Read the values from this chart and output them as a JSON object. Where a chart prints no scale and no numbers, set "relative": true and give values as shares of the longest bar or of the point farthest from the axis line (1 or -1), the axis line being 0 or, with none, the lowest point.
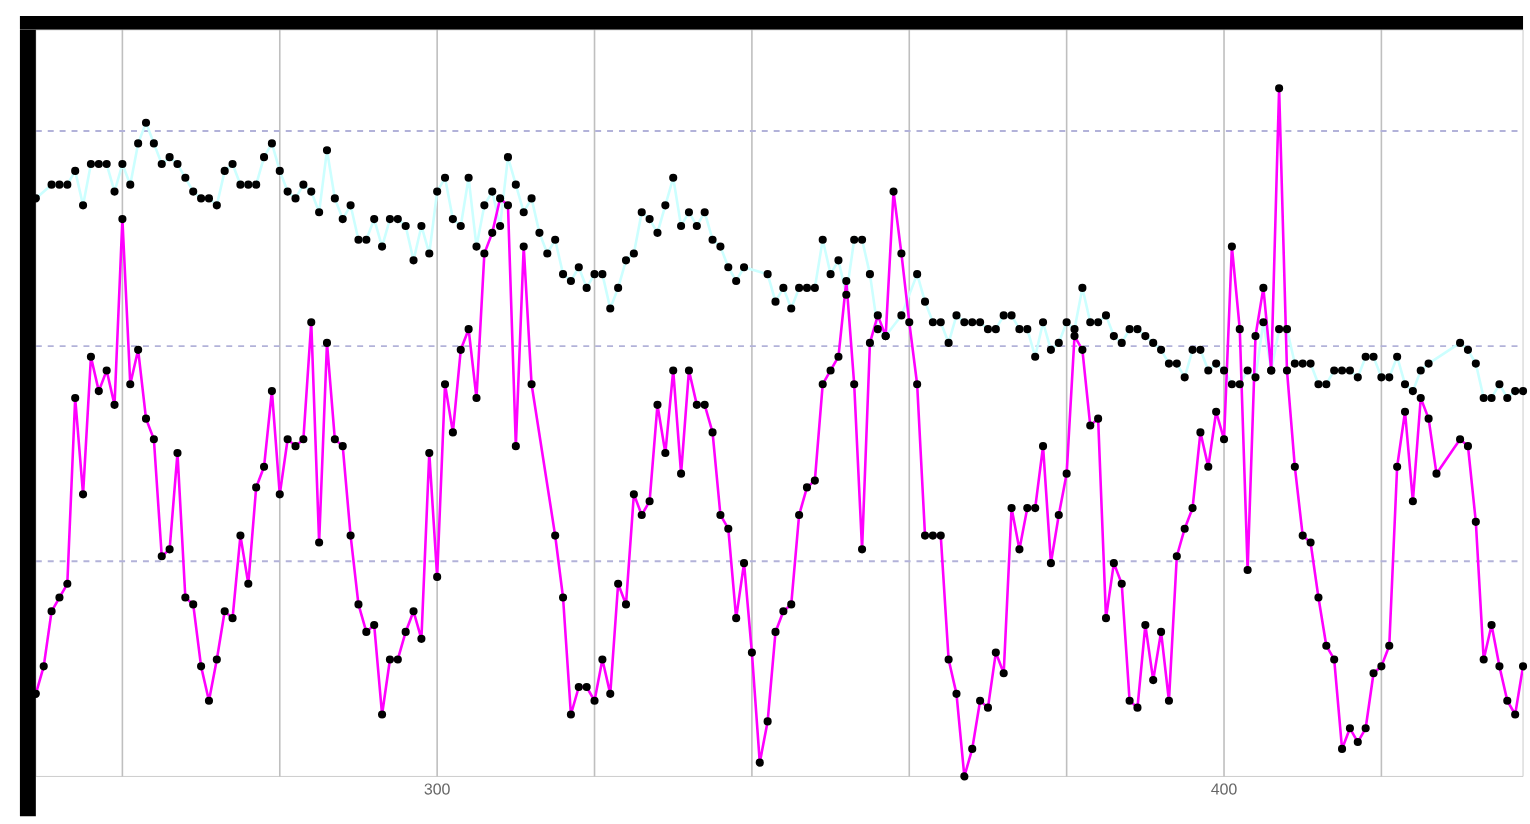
{
  "chart_data": {
    "type": "line",
    "relative": true,
    "grid": true,
    "marker": "circle",
    "xlim": [
      249,
      438
    ],
    "xticks": [
      {
        "value": 260,
        "label": null
      },
      {
        "value": 280,
        "label": null
      },
      300,
      {
        "value": 320,
        "label": null
      },
      {
        "value": 340,
        "label": null
      },
      {
        "value": 360,
        "label": null
      },
      {
        "value": 380,
        "label": null
      },
      400,
      {
        "value": 420,
        "label": null
      }
    ],
    "series": [
      {
        "color": "#ccffff",
        "x": [
          249,
          251,
          252,
          253,
          254,
          255,
          256,
          257,
          258,
          259,
          260,
          261,
          262,
          263,
          264,
          265,
          266,
          267,
          268,
          269,
          270,
          271,
          272,
          273,
          274,
          275,
          276,
          277,
          278,
          279,
          280,
          281,
          282,
          283,
          284,
          285,
          286,
          287,
          288,
          289,
          290,
          291,
          292,
          293,
          294,
          295,
          296,
          297,
          298,
          299,
          300,
          301,
          302,
          303,
          304,
          305,
          306,
          307,
          308,
          309,
          310,
          311,
          312,
          313,
          314,
          315,
          316,
          317,
          318,
          319,
          320,
          321,
          322,
          323,
          324,
          325,
          326,
          327,
          328,
          329,
          330,
          331,
          332,
          333,
          334,
          335,
          336,
          337,
          338,
          339,
          342,
          343,
          344,
          345,
          346,
          347,
          348,
          349,
          350,
          351,
          352,
          353,
          354,
          355,
          356,
          357,
          359,
          361,
          362,
          363,
          364,
          365,
          366,
          367,
          368,
          369,
          370,
          371,
          372,
          373,
          374,
          375,
          376,
          377,
          378,
          379,
          380,
          381,
          382,
          383,
          384,
          385,
          386,
          387,
          388,
          389,
          390,
          391,
          392,
          393,
          394,
          395,
          396,
          397,
          398,
          399,
          400,
          401,
          402,
          403,
          404,
          405,
          406,
          407,
          408,
          409,
          410,
          411,
          412,
          413,
          414,
          415,
          416,
          417,
          418,
          419,
          420,
          421,
          422,
          423,
          424,
          425,
          426,
          430,
          431,
          432,
          433,
          434,
          435,
          436,
          437,
          438
        ],
        "values": [
          0.84,
          0.86,
          0.86,
          0.86,
          0.88,
          0.83,
          0.89,
          0.89,
          0.89,
          0.85,
          0.89,
          0.86,
          0.92,
          0.95,
          0.92,
          0.89,
          0.9,
          0.89,
          0.87,
          0.85,
          0.84,
          0.84,
          0.83,
          0.88,
          0.89,
          0.86,
          0.86,
          0.86,
          0.9,
          0.92,
          0.88,
          0.85,
          0.84,
          0.86,
          0.85,
          0.82,
          0.91,
          0.84,
          0.81,
          0.83,
          0.78,
          0.78,
          0.81,
          0.77,
          0.81,
          0.81,
          0.8,
          0.75,
          0.8,
          0.76,
          0.85,
          0.87,
          0.81,
          0.8,
          0.87,
          0.77,
          0.83,
          0.85,
          0.8,
          0.9,
          0.86,
          0.82,
          0.84,
          0.79,
          0.76,
          0.78,
          0.73,
          0.72,
          0.74,
          0.71,
          0.73,
          0.73,
          0.68,
          0.71,
          0.75,
          0.76,
          0.82,
          0.81,
          0.79,
          0.83,
          0.87,
          0.8,
          0.82,
          0.8,
          0.82,
          0.78,
          0.77,
          0.74,
          0.72,
          0.74,
          0.73,
          0.69,
          0.71,
          0.68,
          0.71,
          0.71,
          0.71,
          0.78,
          0.73,
          0.75,
          0.7,
          0.78,
          0.78,
          0.73,
          0.65,
          0.64,
          0.67,
          0.73,
          0.69,
          0.66,
          0.66,
          0.63,
          0.67,
          0.66,
          0.66,
          0.66,
          0.65,
          0.65,
          0.67,
          0.67,
          0.65,
          0.65,
          0.61,
          0.66,
          0.62,
          0.63,
          0.66,
          0.65,
          0.71,
          0.66,
          0.66,
          0.67,
          0.64,
          0.63,
          0.65,
          0.65,
          0.64,
          0.63,
          0.62,
          0.6,
          0.6,
          0.58,
          0.62,
          0.62,
          0.59,
          0.6,
          0.59,
          0.57,
          0.57,
          0.59,
          0.58,
          0.66,
          0.59,
          0.65,
          0.65,
          0.6,
          0.6,
          0.6,
          0.57,
          0.57,
          0.59,
          0.59,
          0.59,
          0.58,
          0.61,
          0.61,
          0.58,
          0.58,
          0.61,
          0.57,
          0.56,
          0.59,
          0.6,
          0.63,
          0.62,
          0.6,
          0.55,
          0.55,
          0.57,
          0.55,
          0.56,
          0.56
        ]
      },
      {
        "color": "#ff00ff",
        "x": [
          249,
          250,
          251,
          252,
          253,
          254,
          255,
          256,
          257,
          258,
          259,
          260,
          261,
          262,
          263,
          264,
          265,
          266,
          267,
          268,
          269,
          270,
          271,
          272,
          273,
          274,
          275,
          276,
          277,
          278,
          279,
          280,
          281,
          282,
          283,
          284,
          285,
          286,
          287,
          288,
          289,
          290,
          291,
          292,
          293,
          294,
          295,
          296,
          297,
          298,
          299,
          300,
          301,
          302,
          303,
          304,
          305,
          306,
          307,
          308,
          309,
          310,
          311,
          312,
          315,
          316,
          317,
          318,
          319,
          320,
          321,
          322,
          323,
          324,
          325,
          326,
          327,
          328,
          329,
          330,
          331,
          332,
          333,
          334,
          335,
          336,
          337,
          338,
          339,
          340,
          341,
          342,
          343,
          344,
          345,
          346,
          347,
          348,
          349,
          350,
          351,
          352,
          353,
          354,
          355,
          356,
          357,
          358,
          359,
          360,
          361,
          362,
          363,
          364,
          365,
          366,
          367,
          368,
          369,
          370,
          371,
          372,
          373,
          374,
          375,
          376,
          377,
          378,
          379,
          380,
          381,
          382,
          383,
          384,
          385,
          386,
          387,
          388,
          389,
          390,
          391,
          392,
          393,
          394,
          395,
          396,
          397,
          398,
          399,
          400,
          401,
          402,
          403,
          404,
          405,
          406,
          407,
          408,
          409,
          410,
          411,
          412,
          413,
          414,
          415,
          416,
          417,
          418,
          419,
          420,
          421,
          422,
          423,
          424,
          425,
          426,
          427,
          430,
          431,
          432,
          433,
          434,
          435,
          436,
          437,
          438
        ],
        "values": [
          0.12,
          0.16,
          0.24,
          0.26,
          0.28,
          0.55,
          0.41,
          0.61,
          0.56,
          0.59,
          0.54,
          0.81,
          0.57,
          0.62,
          0.52,
          0.49,
          0.32,
          0.33,
          0.47,
          0.26,
          0.25,
          0.16,
          0.11,
          0.17,
          0.24,
          0.23,
          0.35,
          0.28,
          0.42,
          0.45,
          0.56,
          0.41,
          0.49,
          0.48,
          0.49,
          0.66,
          0.34,
          0.63,
          0.49,
          0.48,
          0.35,
          0.25,
          0.21,
          0.22,
          0.09,
          0.17,
          0.17,
          0.21,
          0.24,
          0.2,
          0.47,
          0.29,
          0.57,
          0.5,
          0.62,
          0.65,
          0.55,
          0.76,
          0.79,
          0.84,
          0.83,
          0.48,
          0.77,
          0.57,
          0.35,
          0.26,
          0.09,
          0.13,
          0.13,
          0.11,
          0.17,
          0.12,
          0.28,
          0.25,
          0.41,
          0.38,
          0.4,
          0.54,
          0.47,
          0.59,
          0.44,
          0.59,
          0.54,
          0.54,
          0.5,
          0.38,
          0.36,
          0.23,
          0.31,
          0.18,
          0.02,
          0.08,
          0.21,
          0.24,
          0.25,
          0.38,
          0.42,
          0.43,
          0.57,
          0.59,
          0.61,
          0.72,
          0.57,
          0.33,
          0.63,
          0.67,
          0.64,
          0.85,
          0.76,
          0.66,
          0.57,
          0.35,
          0.35,
          0.35,
          0.17,
          0.12,
          0,
          0.04,
          0.11,
          0.1,
          0.18,
          0.15,
          0.39,
          0.33,
          0.39,
          0.39,
          0.48,
          0.31,
          0.38,
          0.44,
          0.64,
          0.62,
          0.51,
          0.52,
          0.23,
          0.31,
          0.28,
          0.11,
          0.1,
          0.22,
          0.14,
          0.21,
          0.11,
          0.32,
          0.36,
          0.39,
          0.5,
          0.45,
          0.53,
          0.49,
          0.77,
          0.65,
          0.3,
          0.64,
          0.71,
          0.59,
          1,
          0.59,
          0.45,
          0.35,
          0.34,
          0.26,
          0.19,
          0.17,
          0.04,
          0.07,
          0.05,
          0.07,
          0.15,
          0.16,
          0.19,
          0.45,
          0.53,
          0.4,
          0.55,
          0.52,
          0.44,
          0.49,
          0.48,
          0.37,
          0.17,
          0.22,
          0.16,
          0.11,
          0.09,
          0.16
        ]
      }
    ]
  }
}
